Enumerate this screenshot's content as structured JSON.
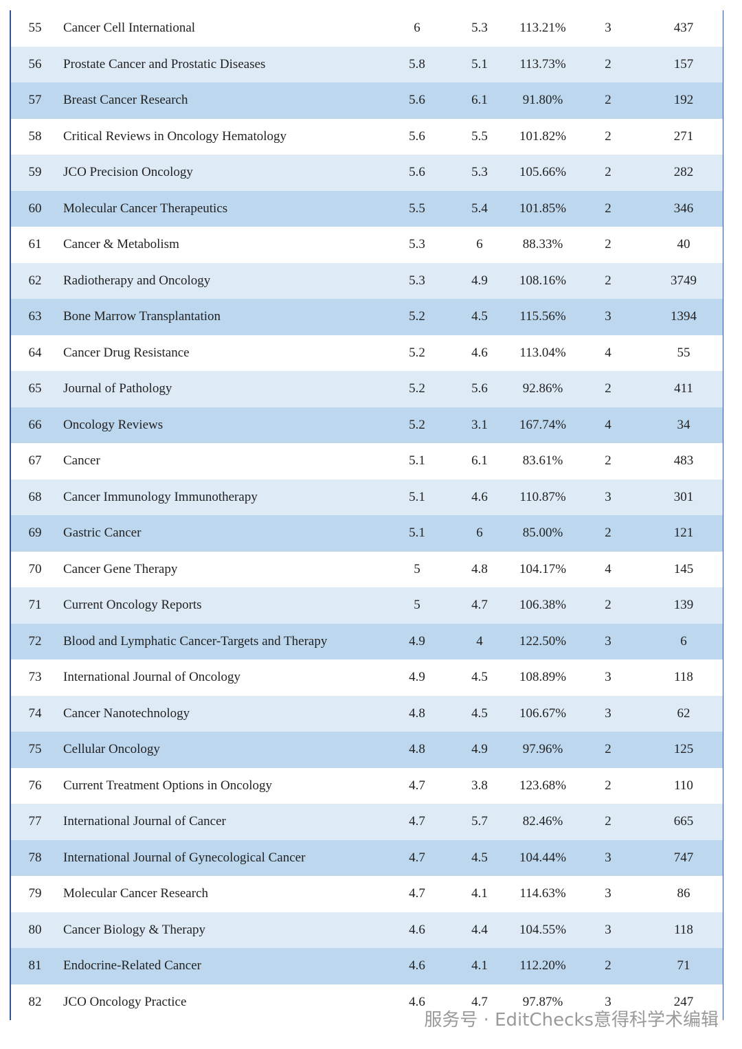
{
  "table": {
    "rows": [
      [
        "55",
        "Cancer Cell International",
        "6",
        "5.3",
        "113.21%",
        "3",
        "437"
      ],
      [
        "56",
        "Prostate Cancer and Prostatic Diseases",
        "5.8",
        "5.1",
        "113.73%",
        "2",
        "157"
      ],
      [
        "57",
        "Breast Cancer Research",
        "5.6",
        "6.1",
        "91.80%",
        "2",
        "192"
      ],
      [
        "58",
        "Critical Reviews in Oncology Hematology",
        "5.6",
        "5.5",
        "101.82%",
        "2",
        "271"
      ],
      [
        "59",
        "JCO Precision Oncology",
        "5.6",
        "5.3",
        "105.66%",
        "2",
        "282"
      ],
      [
        "60",
        "Molecular Cancer Therapeutics",
        "5.5",
        "5.4",
        "101.85%",
        "2",
        "346"
      ],
      [
        "61",
        "Cancer & Metabolism",
        "5.3",
        "6",
        "88.33%",
        "2",
        "40"
      ],
      [
        "62",
        "Radiotherapy and Oncology",
        "5.3",
        "4.9",
        "108.16%",
        "2",
        "3749"
      ],
      [
        "63",
        "Bone Marrow Transplantation",
        "5.2",
        "4.5",
        "115.56%",
        "3",
        "1394"
      ],
      [
        "64",
        "Cancer Drug Resistance",
        "5.2",
        "4.6",
        "113.04%",
        "4",
        "55"
      ],
      [
        "65",
        "Journal of Pathology",
        "5.2",
        "5.6",
        "92.86%",
        "2",
        "411"
      ],
      [
        "66",
        "Oncology Reviews",
        "5.2",
        "3.1",
        "167.74%",
        "4",
        "34"
      ],
      [
        "67",
        "Cancer",
        "5.1",
        "6.1",
        "83.61%",
        "2",
        "483"
      ],
      [
        "68",
        "Cancer Immunology Immunotherapy",
        "5.1",
        "4.6",
        "110.87%",
        "3",
        "301"
      ],
      [
        "69",
        "Gastric Cancer",
        "5.1",
        "6",
        "85.00%",
        "2",
        "121"
      ],
      [
        "70",
        "Cancer Gene Therapy",
        "5",
        "4.8",
        "104.17%",
        "4",
        "145"
      ],
      [
        "71",
        "Current Oncology Reports",
        "5",
        "4.7",
        "106.38%",
        "2",
        "139"
      ],
      [
        "72",
        "Blood and Lymphatic Cancer-Targets and Therapy",
        "4.9",
        "4",
        "122.50%",
        "3",
        "6"
      ],
      [
        "73",
        "International Journal of Oncology",
        "4.9",
        "4.5",
        "108.89%",
        "3",
        "118"
      ],
      [
        "74",
        "Cancer Nanotechnology",
        "4.8",
        "4.5",
        "106.67%",
        "3",
        "62"
      ],
      [
        "75",
        "Cellular Oncology",
        "4.8",
        "4.9",
        "97.96%",
        "2",
        "125"
      ],
      [
        "76",
        "Current Treatment Options in Oncology",
        "4.7",
        "3.8",
        "123.68%",
        "2",
        "110"
      ],
      [
        "77",
        "International Journal of Cancer",
        "4.7",
        "5.7",
        "82.46%",
        "2",
        "665"
      ],
      [
        "78",
        "International Journal of Gynecological Cancer",
        "4.7",
        "4.5",
        "104.44%",
        "3",
        "747"
      ],
      [
        "79",
        "Molecular Cancer Research",
        "4.7",
        "4.1",
        "114.63%",
        "3",
        "86"
      ],
      [
        "80",
        "Cancer Biology & Therapy",
        "4.6",
        "4.4",
        "104.55%",
        "3",
        "118"
      ],
      [
        "81",
        "Endocrine-Related Cancer",
        "4.6",
        "4.1",
        "112.20%",
        "2",
        "71"
      ],
      [
        "82",
        "JCO Oncology Practice",
        "4.6",
        "4.7",
        "97.87%",
        "3",
        "247"
      ]
    ]
  },
  "footer_watermark": "服务号 · EditChecks意得科学术编辑"
}
